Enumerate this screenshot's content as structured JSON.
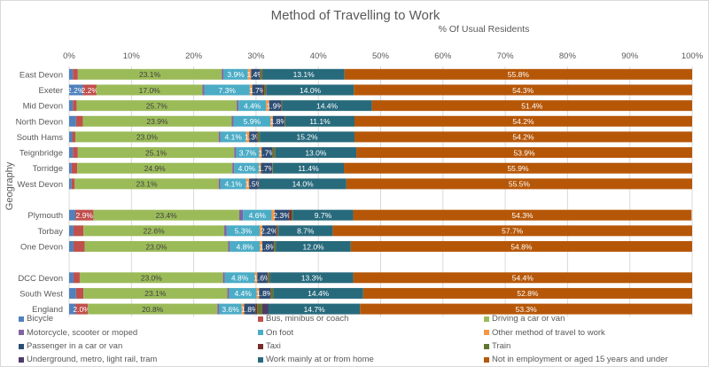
{
  "chart_data": {
    "type": "bar",
    "orientation": "horizontal",
    "stacked": "100%",
    "title": "Method of Travelling to Work",
    "subtitle": "% Of Usual Residents",
    "ylabel": "Geography",
    "xlim": [
      0,
      100
    ],
    "xticks": [
      "0%",
      "10%",
      "20%",
      "30%",
      "40%",
      "50%",
      "60%",
      "70%",
      "80%",
      "90%",
      "100%"
    ],
    "grid": true,
    "legend_position": "bottom",
    "categories": [
      "East Devon",
      "Exeter",
      "Mid Devon",
      "North Devon",
      "South Hams",
      "Teignbridge",
      "Torridge",
      "West Devon",
      "",
      "Plymouth",
      "Torbay",
      "One Devon",
      "",
      "DCC Devon",
      "South West",
      "England"
    ],
    "series": [
      {
        "name": "Bicycle",
        "color": "#4f81bd",
        "values": [
          0.6,
          2.2,
          0.6,
          1.1,
          0.5,
          0.6,
          0.4,
          0.4,
          null,
          1.0,
          0.7,
          0.7,
          null,
          0.7,
          1.1,
          1.0
        ]
      },
      {
        "name": "Bus, minibus or coach",
        "color": "#c0504d",
        "values": [
          0.8,
          2.2,
          0.6,
          1.1,
          0.5,
          0.8,
          0.9,
          0.5,
          null,
          2.9,
          1.6,
          1.8,
          null,
          1.0,
          1.2,
          2.0
        ]
      },
      {
        "name": "Driving a car or van",
        "color": "#9bbb59",
        "values": [
          23.1,
          17.0,
          25.7,
          23.9,
          23.0,
          25.1,
          24.9,
          23.1,
          null,
          23.4,
          22.6,
          23.0,
          null,
          23.0,
          23.1,
          20.8
        ]
      },
      {
        "name": "Motorcycle, scooter or moped",
        "color": "#8064a2",
        "values": [
          0.3,
          0.3,
          0.3,
          0.3,
          0.3,
          0.3,
          0.3,
          0.3,
          null,
          0.6,
          0.4,
          0.3,
          null,
          0.3,
          0.3,
          0.3
        ]
      },
      {
        "name": "On foot",
        "color": "#4bacc6",
        "values": [
          3.9,
          7.3,
          4.4,
          5.9,
          4.1,
          3.7,
          4.0,
          4.1,
          null,
          4.6,
          5.3,
          4.8,
          null,
          4.8,
          4.4,
          3.6
        ]
      },
      {
        "name": "Other method of travel to work",
        "color": "#f79646",
        "values": [
          0.5,
          0.4,
          0.5,
          0.4,
          0.5,
          0.4,
          0.3,
          0.5,
          null,
          0.5,
          0.4,
          0.4,
          null,
          0.4,
          0.4,
          0.4
        ]
      },
      {
        "name": "Passenger in a car or van",
        "color": "#2c4d75",
        "values": [
          1.4,
          1.7,
          1.9,
          1.8,
          1.3,
          1.7,
          1.7,
          1.5,
          null,
          2.3,
          2.2,
          1.8,
          null,
          1.6,
          1.8,
          1.8
        ]
      },
      {
        "name": "Taxi",
        "color": "#772c2a",
        "values": [
          0.1,
          0.2,
          0.1,
          0.1,
          0.1,
          0.1,
          0.1,
          0.1,
          null,
          0.4,
          0.2,
          0.1,
          null,
          0.1,
          0.1,
          0.3
        ]
      },
      {
        "name": "Train",
        "color": "#5f7530",
        "values": [
          0.3,
          0.3,
          0.1,
          0.1,
          0.3,
          0.4,
          0.1,
          0.0,
          null,
          0.2,
          0.2,
          0.3,
          null,
          0.3,
          0.4,
          0.8
        ]
      },
      {
        "name": "Underground, metro, light rail, tram",
        "color": "#4d3b62",
        "values": [
          0.1,
          0.1,
          0.0,
          0.0,
          0.0,
          0.0,
          0.0,
          0.0,
          null,
          0.0,
          0.0,
          0.0,
          null,
          0.1,
          0.0,
          1.0
        ]
      },
      {
        "name": "Work mainly at or from home",
        "color": "#276a7c",
        "values": [
          13.1,
          14.0,
          14.4,
          11.1,
          15.2,
          13.0,
          11.4,
          14.0,
          null,
          9.7,
          8.7,
          12.0,
          null,
          13.3,
          14.4,
          14.7
        ]
      },
      {
        "name": "Not in employment or aged 15 years and under",
        "color": "#b65708",
        "values": [
          55.8,
          54.3,
          51.4,
          54.2,
          54.2,
          53.9,
          55.9,
          55.5,
          null,
          54.3,
          57.7,
          54.8,
          null,
          54.4,
          52.8,
          53.3
        ]
      }
    ]
  }
}
